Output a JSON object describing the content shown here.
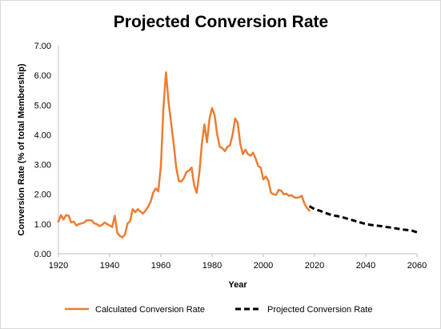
{
  "chart_data": {
    "type": "line",
    "title": "Projected Conversion Rate",
    "xlabel": "Year",
    "ylabel": "Conversion Rate (% of total Membership)",
    "xlim": [
      1920,
      2060
    ],
    "ylim": [
      0,
      7
    ],
    "x_ticks": [
      "1920",
      "1940",
      "1960",
      "1980",
      "2000",
      "2020",
      "2040",
      "2060"
    ],
    "y_ticks": [
      "0.00",
      "1.00",
      "2.00",
      "3.00",
      "4.00",
      "5.00",
      "6.00",
      "7.00"
    ],
    "grid": false,
    "legend_position": "bottom",
    "series": [
      {
        "name": "Calculated Conversion Rate",
        "color": "#ED7D31",
        "style": "solid",
        "points": [
          [
            1920,
            1.08
          ],
          [
            1921,
            1.3
          ],
          [
            1922,
            1.15
          ],
          [
            1923,
            1.3
          ],
          [
            1924,
            1.28
          ],
          [
            1925,
            1.05
          ],
          [
            1926,
            1.08
          ],
          [
            1927,
            0.95
          ],
          [
            1928,
            1.0
          ],
          [
            1929,
            1.02
          ],
          [
            1930,
            1.05
          ],
          [
            1931,
            1.12
          ],
          [
            1932,
            1.13
          ],
          [
            1933,
            1.12
          ],
          [
            1934,
            1.02
          ],
          [
            1935,
            1.0
          ],
          [
            1936,
            0.93
          ],
          [
            1937,
            0.97
          ],
          [
            1938,
            1.05
          ],
          [
            1939,
            1.0
          ],
          [
            1940,
            0.95
          ],
          [
            1941,
            0.9
          ],
          [
            1942,
            1.28
          ],
          [
            1943,
            0.7
          ],
          [
            1944,
            0.6
          ],
          [
            1945,
            0.55
          ],
          [
            1946,
            0.65
          ],
          [
            1947,
            1.02
          ],
          [
            1948,
            1.1
          ],
          [
            1949,
            1.5
          ],
          [
            1950,
            1.4
          ],
          [
            1951,
            1.5
          ],
          [
            1952,
            1.42
          ],
          [
            1953,
            1.35
          ],
          [
            1954,
            1.45
          ],
          [
            1955,
            1.58
          ],
          [
            1956,
            1.75
          ],
          [
            1957,
            2.05
          ],
          [
            1958,
            2.2
          ],
          [
            1959,
            2.1
          ],
          [
            1960,
            2.95
          ],
          [
            1961,
            4.9
          ],
          [
            1962,
            6.1
          ],
          [
            1963,
            5.1
          ],
          [
            1964,
            4.4
          ],
          [
            1965,
            3.7
          ],
          [
            1966,
            2.9
          ],
          [
            1967,
            2.45
          ],
          [
            1968,
            2.43
          ],
          [
            1969,
            2.55
          ],
          [
            1970,
            2.75
          ],
          [
            1971,
            2.8
          ],
          [
            1972,
            2.9
          ],
          [
            1973,
            2.3
          ],
          [
            1974,
            2.05
          ],
          [
            1975,
            2.7
          ],
          [
            1976,
            3.7
          ],
          [
            1977,
            4.35
          ],
          [
            1978,
            3.75
          ],
          [
            1979,
            4.55
          ],
          [
            1980,
            4.9
          ],
          [
            1981,
            4.65
          ],
          [
            1982,
            4.0
          ],
          [
            1983,
            3.6
          ],
          [
            1984,
            3.55
          ],
          [
            1985,
            3.45
          ],
          [
            1986,
            3.6
          ],
          [
            1987,
            3.65
          ],
          [
            1988,
            4.0
          ],
          [
            1989,
            4.55
          ],
          [
            1990,
            4.4
          ],
          [
            1991,
            3.7
          ],
          [
            1992,
            3.35
          ],
          [
            1993,
            3.5
          ],
          [
            1994,
            3.35
          ],
          [
            1995,
            3.3
          ],
          [
            1996,
            3.4
          ],
          [
            1997,
            3.2
          ],
          [
            1998,
            2.95
          ],
          [
            1999,
            2.9
          ],
          [
            2000,
            2.5
          ],
          [
            2001,
            2.6
          ],
          [
            2002,
            2.45
          ],
          [
            2003,
            2.05
          ],
          [
            2004,
            2.0
          ],
          [
            2005,
            1.98
          ],
          [
            2006,
            2.15
          ],
          [
            2007,
            2.12
          ],
          [
            2008,
            2.0
          ],
          [
            2009,
            2.02
          ],
          [
            2010,
            1.95
          ],
          [
            2011,
            1.97
          ],
          [
            2012,
            1.9
          ],
          [
            2013,
            1.88
          ],
          [
            2014,
            1.9
          ],
          [
            2015,
            1.95
          ],
          [
            2016,
            1.7
          ],
          [
            2017,
            1.55
          ],
          [
            2018,
            1.45
          ]
        ]
      },
      {
        "name": "Projected Conversion Rate",
        "color": "#000000",
        "style": "dashed",
        "points": [
          [
            2018,
            1.6
          ],
          [
            2020,
            1.5
          ],
          [
            2022,
            1.45
          ],
          [
            2024,
            1.38
          ],
          [
            2026,
            1.32
          ],
          [
            2028,
            1.28
          ],
          [
            2030,
            1.25
          ],
          [
            2032,
            1.2
          ],
          [
            2034,
            1.15
          ],
          [
            2036,
            1.1
          ],
          [
            2038,
            1.05
          ],
          [
            2040,
            1.0
          ],
          [
            2042,
            0.97
          ],
          [
            2044,
            0.95
          ],
          [
            2046,
            0.93
          ],
          [
            2048,
            0.9
          ],
          [
            2050,
            0.88
          ],
          [
            2052,
            0.85
          ],
          [
            2054,
            0.82
          ],
          [
            2056,
            0.8
          ],
          [
            2058,
            0.78
          ],
          [
            2060,
            0.72
          ]
        ]
      }
    ]
  }
}
